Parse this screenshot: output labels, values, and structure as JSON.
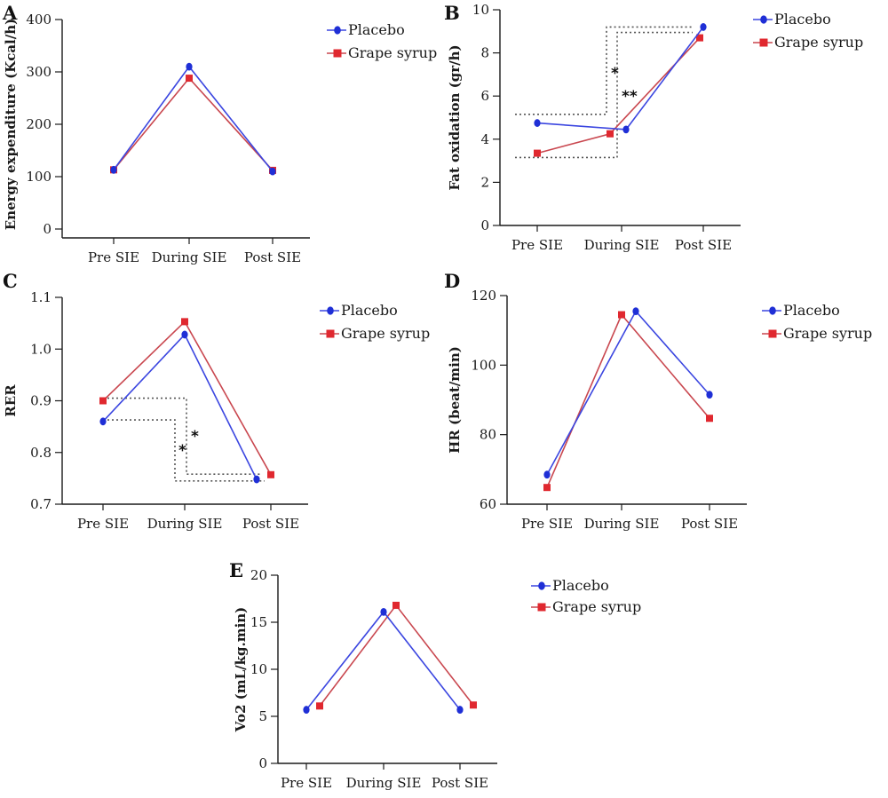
{
  "colors": {
    "placebo": "#1f2fd6",
    "grape": "#e0282f",
    "placebo_line": "#3b46e0",
    "grape_line": "#c9474f"
  },
  "chart_data": [
    {
      "panel": "A",
      "type": "line",
      "categories": [
        "Pre SIE",
        "During SIE",
        "Post SIE"
      ],
      "ylabel": "Energy expenditure (Kcal/h)",
      "ylim": [
        0,
        400
      ],
      "yticks": [
        0,
        100,
        200,
        300,
        400
      ],
      "legend_position": "top-right",
      "series": [
        {
          "name": "Placebo",
          "marker": "circle",
          "values": [
            113,
            310,
            110
          ]
        },
        {
          "name": "Grape syrup",
          "marker": "square",
          "values": [
            113,
            288,
            112
          ]
        }
      ],
      "annotations": []
    },
    {
      "panel": "B",
      "type": "line",
      "categories": [
        "Pre SIE",
        "During SIE",
        "Post SIE"
      ],
      "ylabel": "Fat oxidation (gr/h)",
      "ylim": [
        0,
        10
      ],
      "yticks": [
        0,
        2,
        4,
        6,
        8,
        10
      ],
      "legend_position": "top-right",
      "series": [
        {
          "name": "Placebo",
          "marker": "circle",
          "values": [
            4.75,
            4.45,
            9.2
          ]
        },
        {
          "name": "Grape syrup",
          "marker": "square",
          "values": [
            3.35,
            4.25,
            8.7
          ]
        }
      ],
      "annotations": [
        "*",
        "**"
      ]
    },
    {
      "panel": "C",
      "type": "line",
      "categories": [
        "Pre SIE",
        "During SIE",
        "Post SIE"
      ],
      "ylabel": "RER",
      "ylim": [
        0.7,
        1.1
      ],
      "yticks": [
        0.7,
        0.8,
        0.9,
        1.0,
        1.1
      ],
      "legend_position": "top-right",
      "series": [
        {
          "name": "Placebo",
          "marker": "circle",
          "values": [
            0.86,
            1.028,
            0.748
          ]
        },
        {
          "name": "Grape syrup",
          "marker": "square",
          "values": [
            0.9,
            1.053,
            0.757
          ]
        }
      ],
      "annotations": [
        "*",
        "*"
      ]
    },
    {
      "panel": "D",
      "type": "line",
      "categories": [
        "Pre SIE",
        "During SIE",
        "Post SIE"
      ],
      "ylabel": "HR (beat/min)",
      "ylim": [
        60,
        120
      ],
      "yticks": [
        60,
        80,
        100,
        120
      ],
      "legend_position": "top-right",
      "series": [
        {
          "name": "Placebo",
          "marker": "circle",
          "values": [
            68.5,
            115.5,
            91.5
          ]
        },
        {
          "name": "Grape syrup",
          "marker": "square",
          "values": [
            64.8,
            114.5,
            84.7
          ]
        }
      ],
      "annotations": []
    },
    {
      "panel": "E",
      "type": "line",
      "categories": [
        "Pre SIE",
        "During SIE",
        "Post SIE"
      ],
      "ylabel": "Vo2 (mL/kg.min)",
      "ylim": [
        0,
        20
      ],
      "yticks": [
        0,
        5,
        10,
        15,
        20
      ],
      "legend_position": "top-right",
      "series": [
        {
          "name": "Placebo",
          "marker": "circle",
          "values": [
            5.7,
            16.1,
            5.7
          ]
        },
        {
          "name": "Grape syrup",
          "marker": "square",
          "values": [
            6.1,
            16.8,
            6.2
          ]
        }
      ],
      "annotations": []
    }
  ]
}
